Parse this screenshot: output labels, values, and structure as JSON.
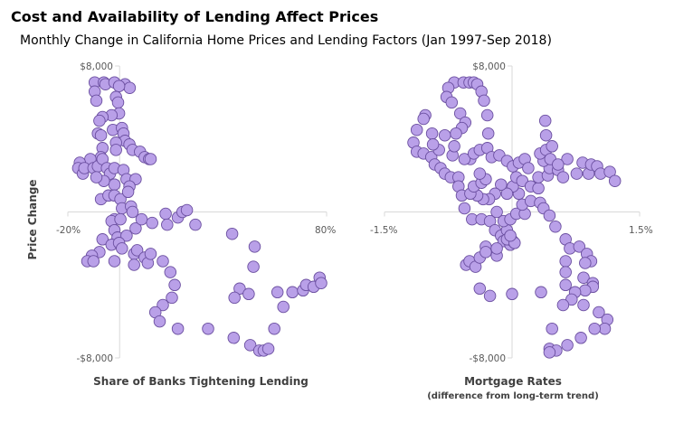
{
  "title": "Cost and Availability of Lending Affect Prices",
  "subtitle": "Monthly Change in California Home Prices and Lending Factors (Jan 1997-Sep 2018)",
  "colors": {
    "marker_fill": "#b9a0e8",
    "marker_stroke": "#6b4fa0",
    "axis": "#d9d9d9"
  },
  "chart_data": [
    {
      "type": "scatter",
      "xlabel": "Share of Banks Tightening Lending",
      "ylabel": "Price Change",
      "xlim": [
        -20,
        80
      ],
      "ylim": [
        -8000,
        8000
      ],
      "x_tick_labels": [
        "-20%",
        "80%"
      ],
      "y_tick_labels": [
        "$8,000",
        "-$8,000"
      ],
      "grid": false,
      "points": [
        [
          -9.6,
          7100
        ],
        [
          -6.1,
          7100
        ],
        [
          -5.5,
          7000
        ],
        [
          -2.0,
          7100
        ],
        [
          2.1,
          7000
        ],
        [
          3.9,
          6800
        ],
        [
          -0.2,
          6900
        ],
        [
          -9.6,
          6600
        ],
        [
          -9.0,
          6100
        ],
        [
          -1.4,
          6300
        ],
        [
          -0.6,
          6000
        ],
        [
          -0.2,
          5400
        ],
        [
          -3.1,
          5300
        ],
        [
          -6.6,
          5200
        ],
        [
          -7.8,
          5000
        ],
        [
          -2.6,
          4500
        ],
        [
          0.9,
          4600
        ],
        [
          -8.4,
          4300
        ],
        [
          -7.2,
          4200
        ],
        [
          1.5,
          4300
        ],
        [
          2.1,
          3900
        ],
        [
          -1.4,
          3800
        ],
        [
          3.8,
          3700
        ],
        [
          5.0,
          3400
        ],
        [
          7.9,
          3300
        ],
        [
          9.7,
          3000
        ],
        [
          11.4,
          2900
        ],
        [
          12.0,
          2900
        ],
        [
          -1.4,
          3400
        ],
        [
          -6.6,
          3500
        ],
        [
          -7.2,
          3000
        ],
        [
          -11.3,
          2900
        ],
        [
          -15.4,
          2700
        ],
        [
          -16.0,
          2400
        ],
        [
          -14.2,
          2100
        ],
        [
          -13.6,
          2400
        ],
        [
          -10.1,
          2400
        ],
        [
          -8.4,
          2500
        ],
        [
          -6.6,
          2900
        ],
        [
          -4.9,
          2400
        ],
        [
          -3.7,
          2100
        ],
        [
          -2.0,
          2400
        ],
        [
          1.5,
          2300
        ],
        [
          2.7,
          1800
        ],
        [
          6.2,
          1800
        ],
        [
          3.8,
          1400
        ],
        [
          -2.0,
          1500
        ],
        [
          -6.1,
          1700
        ],
        [
          -9.0,
          1900
        ],
        [
          -7.2,
          700
        ],
        [
          -4.3,
          900
        ],
        [
          -2.0,
          900
        ],
        [
          0.3,
          700
        ],
        [
          3.3,
          1100
        ],
        [
          0.9,
          200
        ],
        [
          4.4,
          300
        ],
        [
          5.0,
          0
        ],
        [
          -2.0,
          -400
        ],
        [
          -3.1,
          -500
        ],
        [
          0.3,
          -400
        ],
        [
          -2.0,
          -1000
        ],
        [
          -0.8,
          -1400
        ],
        [
          2.7,
          -1300
        ],
        [
          6.2,
          -900
        ],
        [
          8.5,
          -400
        ],
        [
          12.6,
          -600
        ],
        [
          17.8,
          -100
        ],
        [
          18.4,
          -700
        ],
        [
          22.5,
          -300
        ],
        [
          24.3,
          0
        ],
        [
          26.0,
          100
        ],
        [
          29.3,
          -700
        ],
        [
          43.5,
          -1200
        ],
        [
          52.2,
          -1900
        ],
        [
          51.7,
          -3000
        ],
        [
          -6.6,
          -1500
        ],
        [
          -3.1,
          -1800
        ],
        [
          -0.2,
          -1700
        ],
        [
          0.9,
          -2000
        ],
        [
          -7.8,
          -2200
        ],
        [
          -10.7,
          -2400
        ],
        [
          -12.5,
          -2700
        ],
        [
          -10.1,
          -2700
        ],
        [
          -2.0,
          -2700
        ],
        [
          5.6,
          -2300
        ],
        [
          6.8,
          -2100
        ],
        [
          5.6,
          -2900
        ],
        [
          9.7,
          -2500
        ],
        [
          10.9,
          -2800
        ],
        [
          12.0,
          -2300
        ],
        [
          16.7,
          -2700
        ],
        [
          19.6,
          -3300
        ],
        [
          21.3,
          -4000
        ],
        [
          20.2,
          -4700
        ],
        [
          16.7,
          -5100
        ],
        [
          13.8,
          -5500
        ],
        [
          15.5,
          -6000
        ],
        [
          22.5,
          -6400
        ],
        [
          34.2,
          -6400
        ],
        [
          44.1,
          -6900
        ],
        [
          50.5,
          -7300
        ],
        [
          54.0,
          -7600
        ],
        [
          55.7,
          -7600
        ],
        [
          57.5,
          -7500
        ],
        [
          59.8,
          -6400
        ],
        [
          63.3,
          -5200
        ],
        [
          61.0,
          -4400
        ],
        [
          46.4,
          -4200
        ],
        [
          44.4,
          -4700
        ],
        [
          49.9,
          -4500
        ],
        [
          66.8,
          -4400
        ],
        [
          70.9,
          -4300
        ],
        [
          72.1,
          -4000
        ],
        [
          75.0,
          -4100
        ],
        [
          77.3,
          -3600
        ],
        [
          77.9,
          -3900
        ]
      ]
    },
    {
      "type": "scatter",
      "xlabel": "Mortgage Rates",
      "xlabel_sub": "(difference from long-term trend)",
      "xlim": [
        -1.5,
        1.5
      ],
      "ylim": [
        -8000,
        8000
      ],
      "x_tick_labels": [
        "-1.5%",
        "1.5%"
      ],
      "y_tick_labels": [
        "$8,000",
        "-$8,000"
      ],
      "grid": false,
      "points": [
        [
          -0.68,
          7100
        ],
        [
          -0.57,
          7100
        ],
        [
          -0.5,
          7100
        ],
        [
          -0.45,
          7100
        ],
        [
          -0.41,
          7000
        ],
        [
          -0.36,
          6600
        ],
        [
          -0.33,
          6100
        ],
        [
          -0.29,
          5300
        ],
        [
          -0.28,
          4300
        ],
        [
          -0.75,
          6800
        ],
        [
          -0.77,
          6300
        ],
        [
          -0.71,
          6000
        ],
        [
          -0.61,
          5400
        ],
        [
          -0.55,
          4900
        ],
        [
          -0.59,
          4600
        ],
        [
          -0.66,
          4300
        ],
        [
          -0.79,
          4200
        ],
        [
          -0.94,
          4300
        ],
        [
          -1.02,
          5300
        ],
        [
          -1.04,
          5100
        ],
        [
          -1.12,
          4500
        ],
        [
          -1.16,
          3800
        ],
        [
          -1.12,
          3300
        ],
        [
          -1.04,
          3200
        ],
        [
          -0.95,
          3000
        ],
        [
          -0.91,
          2600
        ],
        [
          -0.84,
          2400
        ],
        [
          -0.79,
          2100
        ],
        [
          -0.72,
          1900
        ],
        [
          -0.63,
          1900
        ],
        [
          -0.63,
          1400
        ],
        [
          -0.59,
          900
        ],
        [
          -0.56,
          200
        ],
        [
          -0.47,
          -400
        ],
        [
          -0.36,
          -400
        ],
        [
          -0.26,
          -500
        ],
        [
          -0.18,
          0
        ],
        [
          -0.2,
          -1000
        ],
        [
          -0.13,
          -1300
        ],
        [
          -0.1,
          -1600
        ],
        [
          -0.02,
          -1800
        ],
        [
          0.01,
          -1600
        ],
        [
          -0.06,
          -1000
        ],
        [
          -0.1,
          -500
        ],
        [
          -0.02,
          -400
        ],
        [
          0.05,
          -100
        ],
        [
          0.15,
          -100
        ],
        [
          0.12,
          400
        ],
        [
          0.08,
          1000
        ],
        [
          0.01,
          1400
        ],
        [
          -0.06,
          1000
        ],
        [
          -0.13,
          1500
        ],
        [
          -0.2,
          1000
        ],
        [
          -0.27,
          700
        ],
        [
          -0.34,
          700
        ],
        [
          -0.41,
          900
        ],
        [
          -0.49,
          1000
        ],
        [
          -0.45,
          1400
        ],
        [
          -0.36,
          1600
        ],
        [
          -0.31,
          1800
        ],
        [
          -0.38,
          2100
        ],
        [
          -0.49,
          2900
        ],
        [
          -0.56,
          2900
        ],
        [
          -0.7,
          3100
        ],
        [
          -0.86,
          3400
        ],
        [
          -0.93,
          3700
        ],
        [
          -0.68,
          3600
        ],
        [
          -0.45,
          3200
        ],
        [
          -0.38,
          3400
        ],
        [
          -0.29,
          3500
        ],
        [
          -0.24,
          3000
        ],
        [
          -0.15,
          3100
        ],
        [
          -0.06,
          2800
        ],
        [
          0.01,
          2500
        ],
        [
          0.08,
          2700
        ],
        [
          0.15,
          2900
        ],
        [
          0.19,
          2400
        ],
        [
          0.05,
          1900
        ],
        [
          0.12,
          1700
        ],
        [
          0.22,
          1400
        ],
        [
          0.31,
          1300
        ],
        [
          0.22,
          600
        ],
        [
          0.33,
          500
        ],
        [
          0.37,
          200
        ],
        [
          0.44,
          -200
        ],
        [
          0.51,
          -800
        ],
        [
          0.31,
          1900
        ],
        [
          0.42,
          2000
        ],
        [
          0.44,
          2400
        ],
        [
          0.37,
          2800
        ],
        [
          0.33,
          3200
        ],
        [
          0.4,
          3400
        ],
        [
          0.45,
          2900
        ],
        [
          0.47,
          3600
        ],
        [
          0.4,
          4200
        ],
        [
          0.39,
          5000
        ],
        [
          0.54,
          2300
        ],
        [
          0.6,
          1900
        ],
        [
          0.65,
          2900
        ],
        [
          0.76,
          2100
        ],
        [
          0.83,
          2700
        ],
        [
          0.9,
          2100
        ],
        [
          0.93,
          2600
        ],
        [
          1.0,
          2500
        ],
        [
          1.04,
          2100
        ],
        [
          1.15,
          2200
        ],
        [
          1.21,
          1700
        ],
        [
          0.54,
          2600
        ],
        [
          0.63,
          -1500
        ],
        [
          0.68,
          -2000
        ],
        [
          0.79,
          -1900
        ],
        [
          0.88,
          -2300
        ],
        [
          0.93,
          -2700
        ],
        [
          0.86,
          -2800
        ],
        [
          0.63,
          -2700
        ],
        [
          0.63,
          -3300
        ],
        [
          0.63,
          -4000
        ],
        [
          0.84,
          -3600
        ],
        [
          0.95,
          -3900
        ],
        [
          0.95,
          -4100
        ],
        [
          0.86,
          -4300
        ],
        [
          0.74,
          -4400
        ],
        [
          0.7,
          -4800
        ],
        [
          0.6,
          -5100
        ],
        [
          0.84,
          -5100
        ],
        [
          1.02,
          -5500
        ],
        [
          1.12,
          -5900
        ],
        [
          1.09,
          -6400
        ],
        [
          0.97,
          -6400
        ],
        [
          0.81,
          -6900
        ],
        [
          0.65,
          -7300
        ],
        [
          0.47,
          -6400
        ],
        [
          0.44,
          -7500
        ],
        [
          0.52,
          -7600
        ],
        [
          0.44,
          -7700
        ],
        [
          0.34,
          -4400
        ],
        [
          0.0,
          -4500
        ],
        [
          -0.26,
          -4600
        ],
        [
          -0.38,
          -4200
        ],
        [
          -0.54,
          -2900
        ],
        [
          -0.5,
          -2700
        ],
        [
          -0.43,
          -3000
        ],
        [
          -0.38,
          -2500
        ],
        [
          -0.31,
          -1900
        ],
        [
          -0.31,
          -2200
        ],
        [
          -0.18,
          -2400
        ],
        [
          -0.18,
          -2000
        ],
        [
          -0.06,
          -1500
        ],
        [
          0.03,
          -1700
        ],
        [
          -0.02,
          -1300
        ]
      ]
    }
  ]
}
